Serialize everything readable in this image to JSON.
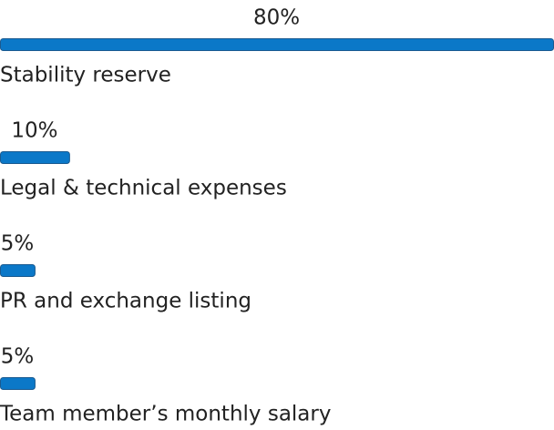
{
  "chart_data": {
    "type": "bar",
    "categories": [
      "Stability reserve",
      "Legal & technical expenses",
      "PR and exchange listing",
      "Team member’s monthly salary"
    ],
    "values": [
      80,
      10,
      5,
      5
    ],
    "value_labels": [
      "80%",
      "10%",
      "5%",
      "5%"
    ],
    "color": "#0b78c8"
  }
}
